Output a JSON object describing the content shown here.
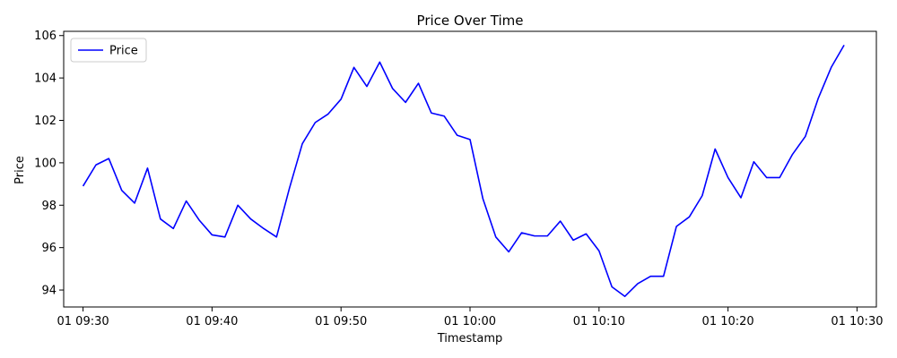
{
  "chart_data": {
    "type": "line",
    "title": "Price Over Time",
    "xlabel": "Timestamp",
    "ylabel": "Price",
    "ylim": [
      93.2,
      106.2
    ],
    "x_range_minutes": [
      -1.5,
      61.5
    ],
    "x_ticks": [
      {
        "minute": 0,
        "label": "01 09:30"
      },
      {
        "minute": 10,
        "label": "01 09:40"
      },
      {
        "minute": 20,
        "label": "01 09:50"
      },
      {
        "minute": 30,
        "label": "01 10:00"
      },
      {
        "minute": 40,
        "label": "01 10:10"
      },
      {
        "minute": 50,
        "label": "01 10:20"
      },
      {
        "minute": 60,
        "label": "01 10:30"
      }
    ],
    "y_ticks": [
      94,
      96,
      98,
      100,
      102,
      104,
      106
    ],
    "legend": {
      "position": "top-left"
    },
    "grid": false,
    "series": [
      {
        "name": "Price",
        "color": "#0000ff",
        "x": [
          "09:30",
          "09:31",
          "09:32",
          "09:33",
          "09:34",
          "09:35",
          "09:36",
          "09:37",
          "09:38",
          "09:39",
          "09:40",
          "09:41",
          "09:42",
          "09:43",
          "09:44",
          "09:45",
          "09:46",
          "09:47",
          "09:48",
          "09:49",
          "09:50",
          "09:51",
          "09:52",
          "09:53",
          "09:54",
          "09:55",
          "09:56",
          "09:57",
          "09:58",
          "09:59",
          "10:00",
          "10:01",
          "10:02",
          "10:03",
          "10:04",
          "10:05",
          "10:06",
          "10:07",
          "10:08",
          "10:09",
          "10:10",
          "10:11",
          "10:12",
          "10:13",
          "10:14",
          "10:15",
          "10:16",
          "10:17",
          "10:18",
          "10:19",
          "10:20",
          "10:21",
          "10:22",
          "10:23",
          "10:24",
          "10:25",
          "10:26",
          "10:27",
          "10:28",
          "10:29"
        ],
        "values": [
          98.9,
          99.9,
          100.2,
          98.7,
          98.1,
          99.75,
          97.35,
          96.9,
          98.2,
          97.3,
          96.6,
          96.5,
          98.0,
          97.35,
          96.9,
          96.5,
          98.8,
          100.9,
          101.9,
          102.3,
          103.0,
          104.5,
          103.6,
          104.75,
          103.5,
          102.85,
          103.75,
          102.35,
          102.2,
          101.3,
          101.1,
          98.3,
          96.5,
          95.8,
          96.7,
          96.55,
          96.55,
          97.25,
          96.35,
          96.65,
          95.85,
          94.15,
          93.7,
          94.3,
          94.65,
          94.65,
          97.0,
          97.45,
          98.45,
          100.65,
          99.3,
          98.35,
          100.05,
          99.3,
          99.3,
          100.4,
          101.25,
          103.05,
          104.5,
          105.55
        ]
      }
    ]
  }
}
